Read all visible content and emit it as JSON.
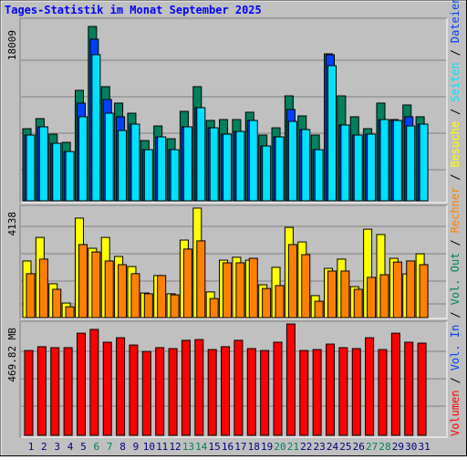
{
  "chart_data": [
    {
      "type": "bar",
      "title": "Tages-Statistik im Monat September 2025",
      "categories": [
        "1",
        "2",
        "3",
        "4",
        "5",
        "6",
        "7",
        "8",
        "9",
        "10",
        "11",
        "12",
        "13",
        "14",
        "15",
        "16",
        "17",
        "18",
        "19",
        "20",
        "21",
        "22",
        "23",
        "24",
        "25",
        "26",
        "27",
        "28",
        "29",
        "30",
        "31"
      ],
      "category_colors": [
        "#000080",
        "#000080",
        "#000080",
        "#000080",
        "#000080",
        "#00805c",
        "#00805c",
        "#000080",
        "#000080",
        "#000080",
        "#000080",
        "#000080",
        "#00805c",
        "#00805c",
        "#000080",
        "#000080",
        "#000080",
        "#000080",
        "#000080",
        "#00805c",
        "#00805c",
        "#000080",
        "#000080",
        "#000080",
        "#000080",
        "#000080",
        "#00805c",
        "#00805c",
        "#000080",
        "#000080",
        "#000080"
      ],
      "ylim": [
        0,
        18009
      ],
      "yticks": [
        18009
      ],
      "separator": "/",
      "series": [
        {
          "name": "Anfragen",
          "color": "#00805c",
          "values": [
            7450,
            8490,
            6880,
            6040,
            11410,
            18009,
            11790,
            10090,
            9050,
            6220,
            7730,
            6410,
            9240,
            11790,
            8300,
            8390,
            8390,
            9150,
            6790,
            7540,
            10840,
            8770,
            6790,
            15180,
            10840,
            8680,
            7450,
            10090,
            8390,
            9900,
            8680
          ]
        },
        {
          "name": "Dateien",
          "color": "#0040ff",
          "values": [
            6790,
            7640,
            5940,
            5090,
            10090,
            16690,
            10470,
            8680,
            7920,
            5280,
            6600,
            5280,
            7640,
            9620,
            7540,
            6880,
            7170,
            8300,
            5660,
            6600,
            9430,
            7360,
            5280,
            15090,
            7830,
            6790,
            6880,
            8390,
            8300,
            8680,
            7920
          ]
        },
        {
          "name": "Seiten",
          "color": "#00e0ff",
          "values": [
            6790,
            7640,
            5940,
            5090,
            8680,
            15090,
            9050,
            7260,
            7920,
            5280,
            6600,
            5280,
            7640,
            9620,
            7540,
            6880,
            7170,
            8300,
            5660,
            6600,
            8200,
            7360,
            5280,
            13960,
            7830,
            6790,
            6880,
            8390,
            8300,
            7730,
            7920
          ]
        }
      ]
    },
    {
      "type": "bar",
      "ylim": [
        0,
        4138
      ],
      "yticks": [
        4138
      ],
      "series": [
        {
          "name": "Besuche",
          "color": "#ffff00",
          "values": [
            2140,
            3030,
            1280,
            550,
            3760,
            2620,
            3030,
            2310,
            1930,
            930,
            1590,
            900,
            2930,
            4138,
            970,
            2170,
            2280,
            2170,
            1240,
            1900,
            3410,
            2860,
            830,
            1860,
            2210,
            1170,
            3340,
            3140,
            2240,
            1650,
            2410
          ]
        },
        {
          "name": "Rechner",
          "color": "#ff8000",
          "values": [
            1660,
            2210,
            1070,
            410,
            2760,
            2480,
            2140,
            2000,
            1660,
            900,
            1590,
            860,
            2590,
            2900,
            720,
            2070,
            2070,
            2240,
            1100,
            1210,
            2760,
            2380,
            620,
            1760,
            1760,
            1070,
            1520,
            1620,
            2100,
            2140,
            2000
          ]
        }
      ]
    },
    {
      "type": "bar",
      "ylim": [
        0,
        469.82
      ],
      "yticks": [
        {
          "value": 469.82,
          "label": "469.82 MB"
        }
      ],
      "series": [
        {
          "name": "Volumen",
          "color": "#ff0000",
          "values": [
            358,
            374,
            370,
            370,
            431,
            447,
            393,
            412,
            381,
            354,
            370,
            366,
            401,
            404,
            362,
            374,
            401,
            366,
            358,
            393,
            469.82,
            358,
            362,
            385,
            370,
            366,
            412,
            362,
            431,
            393,
            389
          ]
        }
      ],
      "extra_legend": [
        {
          "name": "Vol. In",
          "color": "#0040ff"
        },
        {
          "name": "Vol. Out",
          "color": "#00805c"
        }
      ]
    }
  ]
}
